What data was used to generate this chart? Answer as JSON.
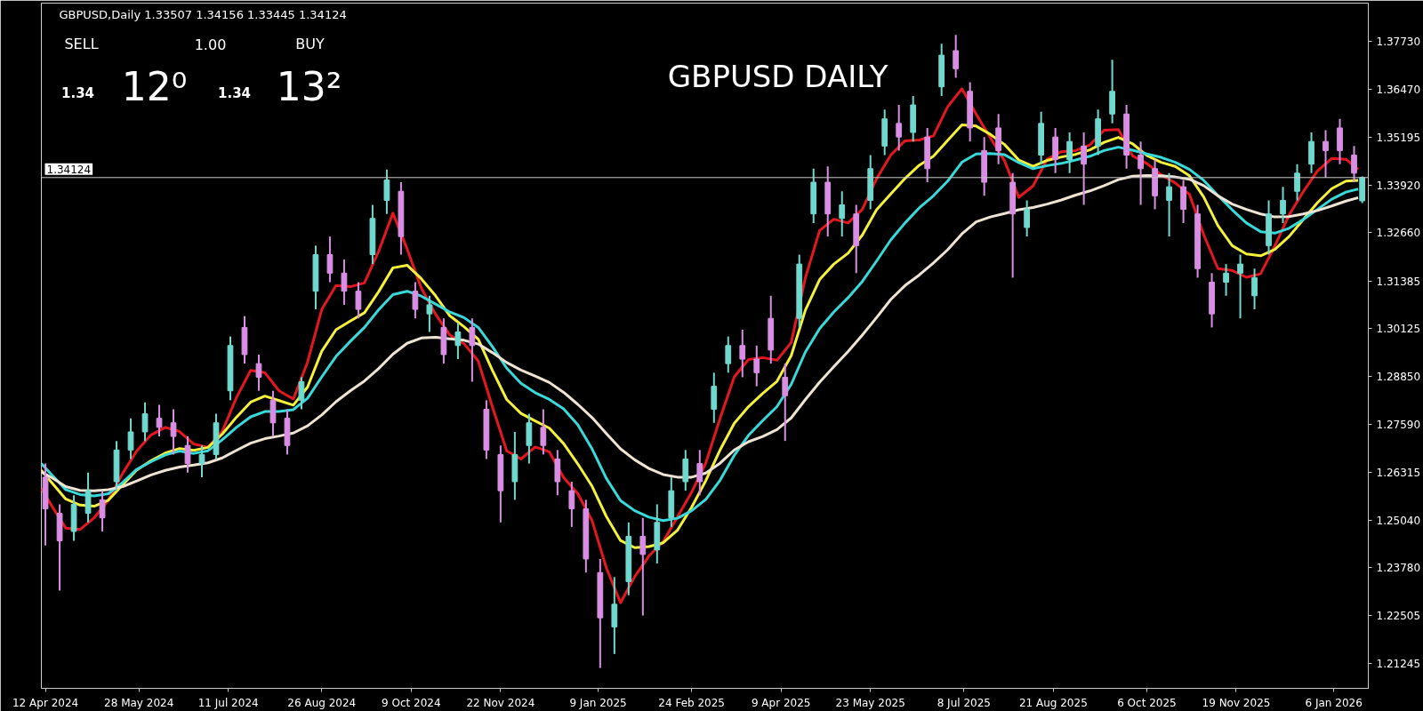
{
  "chart_data": {
    "type": "candlestick",
    "title": "GBPUSD DAILY",
    "subtitle": "GBPUSD,Daily 1.33507 1.34156 1.33445 1.34124",
    "annotations": [
      "SELL",
      "1.00",
      "BUY",
      "1.34",
      "12⁰",
      "1.34",
      "13²"
    ],
    "x": [
      "2024-04-12",
      "2024-04-19",
      "2024-04-26",
      "2024-05-03",
      "2024-05-10",
      "2024-05-17",
      "2024-05-24",
      "2024-05-31",
      "2024-06-07",
      "2024-06-14",
      "2024-06-21",
      "2024-06-28",
      "2024-07-05",
      "2024-07-12",
      "2024-07-19",
      "2024-07-26",
      "2024-08-02",
      "2024-08-09",
      "2024-08-16",
      "2024-08-23",
      "2024-08-30",
      "2024-09-06",
      "2024-09-13",
      "2024-09-20",
      "2024-09-27",
      "2024-10-04",
      "2024-10-11",
      "2024-10-18",
      "2024-10-25",
      "2024-11-01",
      "2024-11-08",
      "2024-11-15",
      "2024-11-22",
      "2024-11-29",
      "2024-12-06",
      "2024-12-13",
      "2024-12-20",
      "2024-12-27",
      "2025-01-03",
      "2025-01-10",
      "2025-01-17",
      "2025-01-24",
      "2025-01-31",
      "2025-02-07",
      "2025-02-14",
      "2025-02-21",
      "2025-02-28",
      "2025-03-07",
      "2025-03-14",
      "2025-03-21",
      "2025-03-28",
      "2025-04-04",
      "2025-04-11",
      "2025-04-18",
      "2025-04-25",
      "2025-05-02",
      "2025-05-09",
      "2025-05-16",
      "2025-05-23",
      "2025-05-30",
      "2025-06-06",
      "2025-06-13",
      "2025-06-20",
      "2025-06-27",
      "2025-07-04",
      "2025-07-11",
      "2025-07-18",
      "2025-07-25",
      "2025-08-01",
      "2025-08-08",
      "2025-08-15",
      "2025-08-22",
      "2025-08-29",
      "2025-09-05",
      "2025-09-12",
      "2025-09-19",
      "2025-09-26",
      "2025-10-03",
      "2025-10-10",
      "2025-10-17",
      "2025-10-24",
      "2025-10-31",
      "2025-11-07",
      "2025-11-14",
      "2025-11-21",
      "2025-11-28",
      "2025-12-05",
      "2025-12-12",
      "2025-12-19",
      "2025-12-26",
      "2026-01-02",
      "2026-01-09",
      "2026-01-16",
      "2026-01-20"
    ],
    "ohlc": [
      [
        1.2618,
        1.2654,
        1.2437,
        1.2534
      ],
      [
        1.2522,
        1.2546,
        1.2317,
        1.2449
      ],
      [
        1.2474,
        1.257,
        1.2449,
        1.2546
      ],
      [
        1.2522,
        1.263,
        1.2498,
        1.2582
      ],
      [
        1.2558,
        1.2582,
        1.2474,
        1.251
      ],
      [
        1.2606,
        1.2714,
        1.2582,
        1.269
      ],
      [
        1.269,
        1.2774,
        1.2666,
        1.2738
      ],
      [
        1.2738,
        1.2816,
        1.2714,
        1.2786
      ],
      [
        1.2774,
        1.281,
        1.2726,
        1.275
      ],
      [
        1.2762,
        1.2798,
        1.2678,
        1.2726
      ],
      [
        1.2702,
        1.2726,
        1.263,
        1.2654
      ],
      [
        1.2654,
        1.2702,
        1.2618,
        1.2678
      ],
      [
        1.2678,
        1.2786,
        1.2666,
        1.2762
      ],
      [
        1.2847,
        1.2991,
        1.2822,
        1.2967
      ],
      [
        1.3015,
        1.3045,
        1.2919,
        1.2943
      ],
      [
        1.2919,
        1.2943,
        1.2847,
        1.2883
      ],
      [
        1.2822,
        1.2847,
        1.2726,
        1.2762
      ],
      [
        1.2774,
        1.2798,
        1.2678,
        1.2702
      ],
      [
        1.2822,
        1.2883,
        1.2798,
        1.2871
      ],
      [
        1.3111,
        1.3232,
        1.3063,
        1.3208
      ],
      [
        1.3208,
        1.3256,
        1.3135,
        1.3159
      ],
      [
        1.3159,
        1.3195,
        1.3075,
        1.3111
      ],
      [
        1.3111,
        1.3135,
        1.3039,
        1.3063
      ],
      [
        1.3208,
        1.334,
        1.3183,
        1.3304
      ],
      [
        1.3352,
        1.3434,
        1.3316,
        1.3406
      ],
      [
        1.3376,
        1.34,
        1.3208,
        1.3256
      ],
      [
        1.3111,
        1.3135,
        1.3039,
        1.3063
      ],
      [
        1.3051,
        1.3099,
        1.3003,
        1.3075
      ],
      [
        1.3015,
        1.3039,
        1.2919,
        1.2943
      ],
      [
        1.2967,
        1.3027,
        1.2931,
        1.3003
      ],
      [
        1.3015,
        1.3039,
        1.2871,
        1.2967
      ],
      [
        1.2798,
        1.2822,
        1.2666,
        1.269
      ],
      [
        1.2678,
        1.2702,
        1.2498,
        1.2582
      ],
      [
        1.2606,
        1.2738,
        1.2558,
        1.2678
      ],
      [
        1.2702,
        1.2786,
        1.2654,
        1.2762
      ],
      [
        1.275,
        1.2798,
        1.2678,
        1.2702
      ],
      [
        1.2666,
        1.269,
        1.257,
        1.2606
      ],
      [
        1.2582,
        1.2606,
        1.2486,
        1.2534
      ],
      [
        1.2534,
        1.2558,
        1.2365,
        1.2401
      ],
      [
        1.2365,
        1.2401,
        1.2112,
        1.2245
      ],
      [
        1.2221,
        1.2353,
        1.2149,
        1.2281
      ],
      [
        1.2341,
        1.2498,
        1.2305,
        1.2461
      ],
      [
        1.2461,
        1.251,
        1.2251,
        1.2413
      ],
      [
        1.2425,
        1.2546,
        1.2389,
        1.2498
      ],
      [
        1.251,
        1.2618,
        1.2486,
        1.2582
      ],
      [
        1.2606,
        1.269,
        1.2582,
        1.2666
      ],
      [
        1.2654,
        1.269,
        1.257,
        1.2606
      ],
      [
        1.2798,
        1.2895,
        1.2762,
        1.2859
      ],
      [
        1.2919,
        1.2991,
        1.2895,
        1.2967
      ],
      [
        1.2967,
        1.3009,
        1.2883,
        1.2931
      ],
      [
        1.2931,
        1.2967,
        1.2859,
        1.2895
      ],
      [
        1.3039,
        1.3099,
        1.2919,
        1.2955
      ],
      [
        1.2883,
        1.2919,
        1.2714,
        1.2834
      ],
      [
        1.3039,
        1.3208,
        1.3015,
        1.3183
      ],
      [
        1.3316,
        1.3436,
        1.3292,
        1.34
      ],
      [
        1.34,
        1.3442,
        1.3256,
        1.3316
      ],
      [
        1.3304,
        1.3376,
        1.3256,
        1.334
      ],
      [
        1.3316,
        1.334,
        1.3159,
        1.3232
      ],
      [
        1.3352,
        1.3472,
        1.3328,
        1.3436
      ],
      [
        1.3496,
        1.3593,
        1.3472,
        1.3568
      ],
      [
        1.3556,
        1.3605,
        1.3484,
        1.352
      ],
      [
        1.3532,
        1.3629,
        1.3508,
        1.3605
      ],
      [
        1.352,
        1.3544,
        1.34,
        1.3436
      ],
      [
        1.3653,
        1.3767,
        1.3629,
        1.3737
      ],
      [
        1.3749,
        1.3791,
        1.3677,
        1.3701
      ],
      [
        1.3641,
        1.3665,
        1.3508,
        1.3544
      ],
      [
        1.3484,
        1.352,
        1.3364,
        1.34
      ],
      [
        1.3544,
        1.3581,
        1.3448,
        1.3484
      ],
      [
        1.34,
        1.3424,
        1.3147,
        1.3316
      ],
      [
        1.328,
        1.3352,
        1.3256,
        1.3328
      ],
      [
        1.3472,
        1.3587,
        1.3448,
        1.3556
      ],
      [
        1.352,
        1.3544,
        1.3424,
        1.346
      ],
      [
        1.346,
        1.3532,
        1.3424,
        1.3508
      ],
      [
        1.3496,
        1.3532,
        1.334,
        1.3448
      ],
      [
        1.3496,
        1.3593,
        1.3472,
        1.3568
      ],
      [
        1.3581,
        1.3725,
        1.3556,
        1.3641
      ],
      [
        1.3581,
        1.3605,
        1.3436,
        1.3472
      ],
      [
        1.3472,
        1.3508,
        1.334,
        1.3436
      ],
      [
        1.3436,
        1.346,
        1.3328,
        1.3364
      ],
      [
        1.3352,
        1.3424,
        1.3256,
        1.3388
      ],
      [
        1.3388,
        1.3406,
        1.3292,
        1.3328
      ],
      [
        1.3316,
        1.334,
        1.3147,
        1.3171
      ],
      [
        1.3135,
        1.3159,
        1.3015,
        1.3051
      ],
      [
        1.3135,
        1.3183,
        1.3099,
        1.3159
      ],
      [
        1.3159,
        1.3208,
        1.3039,
        1.3183
      ],
      [
        1.3099,
        1.3171,
        1.3063,
        1.3147
      ],
      [
        1.3232,
        1.3352,
        1.3208,
        1.3316
      ],
      [
        1.3316,
        1.3388,
        1.3292,
        1.3352
      ],
      [
        1.3376,
        1.3448,
        1.3352,
        1.3424
      ],
      [
        1.3448,
        1.3532,
        1.3424,
        1.3508
      ],
      [
        1.3508,
        1.3538,
        1.3412,
        1.3484
      ],
      [
        1.3544,
        1.3568,
        1.3448,
        1.3484
      ],
      [
        1.3472,
        1.3496,
        1.34,
        1.3424
      ],
      [
        1.33507,
        1.34156,
        1.33445,
        1.34124
      ]
    ],
    "colors": [
      "#d88fe3",
      "#d88fe3",
      "#6fd8cf",
      "#6fd8cf",
      "#d88fe3",
      "#6fd8cf",
      "#6fd8cf",
      "#6fd8cf",
      "#d88fe3",
      "#d88fe3",
      "#d88fe3",
      "#6fd8cf",
      "#6fd8cf",
      "#6fd8cf",
      "#d88fe3",
      "#d88fe3",
      "#d88fe3",
      "#d88fe3",
      "#6fd8cf",
      "#6fd8cf",
      "#d88fe3",
      "#d88fe3",
      "#d88fe3",
      "#6fd8cf",
      "#6fd8cf",
      "#d88fe3",
      "#d88fe3",
      "#6fd8cf",
      "#d88fe3",
      "#6fd8cf",
      "#d88fe3",
      "#d88fe3",
      "#d88fe3",
      "#6fd8cf",
      "#6fd8cf",
      "#d88fe3",
      "#d88fe3",
      "#d88fe3",
      "#d88fe3",
      "#d88fe3",
      "#6fd8cf",
      "#6fd8cf",
      "#d88fe3",
      "#6fd8cf",
      "#6fd8cf",
      "#6fd8cf",
      "#d88fe3",
      "#6fd8cf",
      "#6fd8cf",
      "#d88fe3",
      "#d88fe3",
      "#d88fe3",
      "#d88fe3",
      "#6fd8cf",
      "#6fd8cf",
      "#d88fe3",
      "#6fd8cf",
      "#d88fe3",
      "#6fd8cf",
      "#6fd8cf",
      "#d88fe3",
      "#6fd8cf",
      "#d88fe3",
      "#6fd8cf",
      "#d88fe3",
      "#d88fe3",
      "#d88fe3",
      "#d88fe3",
      "#d88fe3",
      "#6fd8cf",
      "#6fd8cf",
      "#d88fe3",
      "#6fd8cf",
      "#d88fe3",
      "#6fd8cf",
      "#6fd8cf",
      "#d88fe3",
      "#d88fe3",
      "#d88fe3",
      "#6fd8cf",
      "#d88fe3",
      "#d88fe3",
      "#d88fe3",
      "#6fd8cf",
      "#6fd8cf",
      "#6fd8cf",
      "#6fd8cf",
      "#6fd8cf",
      "#6fd8cf",
      "#6fd8cf",
      "#d88fe3",
      "#d88fe3",
      "#d88fe3",
      "#6fd8cf"
    ],
    "series": [
      {
        "type": "line",
        "color": "#e3171f",
        "x": [
          "2024-04-10",
          "2024-04-15",
          "2024-04-22",
          "2024-04-29",
          "2024-05-06",
          "2024-05-13",
          "2024-05-20",
          "2024-05-27",
          "2024-06-03",
          "2024-06-10",
          "2024-06-17",
          "2024-06-24",
          "2024-07-01",
          "2024-07-08",
          "2024-07-15",
          "2024-07-22",
          "2024-07-29",
          "2024-08-05",
          "2024-08-12",
          "2024-08-19",
          "2024-08-26",
          "2024-09-02",
          "2024-09-09",
          "2024-09-16",
          "2024-09-23",
          "2024-09-30",
          "2024-10-07",
          "2024-10-14",
          "2024-10-21",
          "2024-10-28",
          "2024-11-04",
          "2024-11-11",
          "2024-11-18",
          "2024-11-25",
          "2024-12-02",
          "2024-12-09",
          "2024-12-16",
          "2024-12-23",
          "2024-12-30",
          "2025-01-06",
          "2025-01-13",
          "2025-01-20",
          "2025-01-27",
          "2025-02-03",
          "2025-02-10",
          "2025-02-17",
          "2025-02-24",
          "2025-03-03",
          "2025-03-10",
          "2025-03-17",
          "2025-03-24",
          "2025-03-31",
          "2025-04-07",
          "2025-04-14",
          "2025-04-21",
          "2025-04-28",
          "2025-05-05",
          "2025-05-12",
          "2025-05-19",
          "2025-05-26",
          "2025-06-02",
          "2025-06-09",
          "2025-06-16",
          "2025-06-23",
          "2025-06-30",
          "2025-07-07",
          "2025-07-14",
          "2025-07-21",
          "2025-07-28",
          "2025-08-04",
          "2025-08-11",
          "2025-08-18",
          "2025-08-25",
          "2025-09-01",
          "2025-09-08",
          "2025-09-15",
          "2025-09-22",
          "2025-09-29",
          "2025-10-06",
          "2025-10-13",
          "2025-10-20",
          "2025-10-27",
          "2025-11-03",
          "2025-11-10",
          "2025-11-17",
          "2025-11-24",
          "2025-12-01",
          "2025-12-08",
          "2025-12-15",
          "2025-12-22",
          "2025-12-29",
          "2026-01-05",
          "2026-01-12",
          "2026-01-18"
        ],
        "values": [
          1.2588,
          1.2543,
          1.2483,
          1.2479,
          1.251,
          1.2557,
          1.2628,
          1.2688,
          1.273,
          1.275,
          1.2739,
          1.2706,
          1.2697,
          1.2739,
          1.2829,
          1.2901,
          1.2895,
          1.2847,
          1.2825,
          1.2923,
          1.3063,
          1.3126,
          1.3123,
          1.3133,
          1.3217,
          1.3318,
          1.3223,
          1.3119,
          1.305,
          1.2995,
          1.2972,
          1.2926,
          1.2804,
          1.2688,
          1.2666,
          1.2698,
          1.2685,
          1.2617,
          1.2574,
          1.2503,
          1.2378,
          1.2285,
          1.2354,
          1.2409,
          1.2447,
          1.2512,
          1.2578,
          1.2656,
          1.2774,
          1.2884,
          1.293,
          1.2935,
          1.2928,
          1.2975,
          1.3147,
          1.3272,
          1.3302,
          1.3292,
          1.3328,
          1.3409,
          1.3472,
          1.351,
          1.3512,
          1.3523,
          1.36,
          1.3648,
          1.3581,
          1.3518,
          1.3457,
          1.336,
          1.339,
          1.3461,
          1.3481,
          1.3484,
          1.3499,
          1.3538,
          1.354,
          1.347,
          1.345,
          1.342,
          1.3398,
          1.3368,
          1.3261,
          1.3171,
          1.3166,
          1.3148,
          1.3157,
          1.3231,
          1.3313,
          1.3375,
          1.343,
          1.3463,
          1.3461,
          1.3434
        ]
      },
      {
        "type": "line",
        "color": "#f5f03a",
        "x": [
          "2024-04-10",
          "2024-04-15",
          "2024-04-22",
          "2024-04-29",
          "2024-05-06",
          "2024-05-13",
          "2024-05-20",
          "2024-05-27",
          "2024-06-03",
          "2024-06-10",
          "2024-06-17",
          "2024-06-24",
          "2024-07-01",
          "2024-07-08",
          "2024-07-15",
          "2024-07-22",
          "2024-07-29",
          "2024-08-05",
          "2024-08-12",
          "2024-08-19",
          "2024-08-26",
          "2024-09-02",
          "2024-09-09",
          "2024-09-16",
          "2024-09-23",
          "2024-09-30",
          "2024-10-07",
          "2024-10-14",
          "2024-10-21",
          "2024-10-28",
          "2024-11-04",
          "2024-11-11",
          "2024-11-18",
          "2024-11-25",
          "2024-12-02",
          "2024-12-09",
          "2024-12-16",
          "2024-12-23",
          "2024-12-30",
          "2025-01-06",
          "2025-01-13",
          "2025-01-20",
          "2025-01-27",
          "2025-02-03",
          "2025-02-10",
          "2025-02-17",
          "2025-02-24",
          "2025-03-03",
          "2025-03-10",
          "2025-03-17",
          "2025-03-24",
          "2025-03-31",
          "2025-04-07",
          "2025-04-14",
          "2025-04-21",
          "2025-04-28",
          "2025-05-05",
          "2025-05-12",
          "2025-05-19",
          "2025-05-26",
          "2025-06-02",
          "2025-06-09",
          "2025-06-16",
          "2025-06-23",
          "2025-06-30",
          "2025-07-07",
          "2025-07-14",
          "2025-07-21",
          "2025-07-28",
          "2025-08-04",
          "2025-08-11",
          "2025-08-18",
          "2025-08-25",
          "2025-09-01",
          "2025-09-08",
          "2025-09-15",
          "2025-09-22",
          "2025-09-29",
          "2025-10-06",
          "2025-10-13",
          "2025-10-20",
          "2025-10-27",
          "2025-11-03",
          "2025-11-10",
          "2025-11-17",
          "2025-11-24",
          "2025-12-01",
          "2025-12-08",
          "2025-12-15",
          "2025-12-22",
          "2025-12-29",
          "2026-01-05",
          "2026-01-12",
          "2026-01-18"
        ],
        "values": [
          1.2636,
          1.2604,
          1.256,
          1.2544,
          1.2541,
          1.2557,
          1.2598,
          1.2637,
          1.2662,
          1.2682,
          1.2694,
          1.2689,
          1.2697,
          1.2732,
          1.2777,
          1.2817,
          1.2833,
          1.2821,
          1.2809,
          1.2857,
          1.2952,
          1.3009,
          1.3032,
          1.3054,
          1.311,
          1.3173,
          1.318,
          1.3144,
          1.3099,
          1.3046,
          1.3017,
          1.2984,
          1.2901,
          1.2824,
          1.2787,
          1.2767,
          1.2748,
          1.2707,
          1.2653,
          1.2594,
          1.2514,
          1.245,
          1.2431,
          1.2434,
          1.2444,
          1.2477,
          1.2538,
          1.2609,
          1.269,
          1.2761,
          1.2805,
          1.284,
          1.2872,
          1.294,
          1.3061,
          1.3142,
          1.3183,
          1.3212,
          1.326,
          1.3327,
          1.3369,
          1.341,
          1.3445,
          1.3469,
          1.3511,
          1.3552,
          1.3549,
          1.3527,
          1.35,
          1.3459,
          1.3442,
          1.3458,
          1.3467,
          1.3474,
          1.3486,
          1.3506,
          1.3519,
          1.3502,
          1.3471,
          1.3453,
          1.3442,
          1.3417,
          1.3361,
          1.3285,
          1.3232,
          1.321,
          1.3205,
          1.3222,
          1.3256,
          1.3301,
          1.3346,
          1.3383,
          1.3403,
          1.3405
        ]
      },
      {
        "type": "line",
        "color": "#38d9d9",
        "x": [
          "2024-04-10",
          "2024-04-15",
          "2024-04-22",
          "2024-04-29",
          "2024-05-06",
          "2024-05-13",
          "2024-05-20",
          "2024-05-27",
          "2024-06-03",
          "2024-06-10",
          "2024-06-17",
          "2024-06-24",
          "2024-07-01",
          "2024-07-08",
          "2024-07-15",
          "2024-07-22",
          "2024-07-29",
          "2024-08-05",
          "2024-08-12",
          "2024-08-19",
          "2024-08-26",
          "2024-09-02",
          "2024-09-09",
          "2024-09-16",
          "2024-09-23",
          "2024-09-30",
          "2024-10-07",
          "2024-10-14",
          "2024-10-21",
          "2024-10-28",
          "2024-11-04",
          "2024-11-11",
          "2024-11-18",
          "2024-11-25",
          "2024-12-02",
          "2024-12-09",
          "2024-12-16",
          "2024-12-23",
          "2024-12-30",
          "2025-01-06",
          "2025-01-13",
          "2025-01-20",
          "2025-01-27",
          "2025-02-03",
          "2025-02-10",
          "2025-02-17",
          "2025-02-24",
          "2025-03-03",
          "2025-03-10",
          "2025-03-17",
          "2025-03-24",
          "2025-03-31",
          "2025-04-07",
          "2025-04-14",
          "2025-04-21",
          "2025-04-28",
          "2025-05-05",
          "2025-05-12",
          "2025-05-19",
          "2025-05-26",
          "2025-06-02",
          "2025-06-09",
          "2025-06-16",
          "2025-06-23",
          "2025-06-30",
          "2025-07-07",
          "2025-07-14",
          "2025-07-21",
          "2025-07-28",
          "2025-08-04",
          "2025-08-11",
          "2025-08-18",
          "2025-08-25",
          "2025-09-01",
          "2025-09-08",
          "2025-09-15",
          "2025-09-22",
          "2025-09-29",
          "2025-10-06",
          "2025-10-13",
          "2025-10-20",
          "2025-10-27",
          "2025-11-03",
          "2025-11-10",
          "2025-11-17",
          "2025-11-24",
          "2025-12-01",
          "2025-12-08",
          "2025-12-15",
          "2025-12-22",
          "2025-12-29",
          "2026-01-05",
          "2026-01-12",
          "2026-01-18"
        ],
        "values": [
          1.2654,
          1.2625,
          1.2585,
          1.2572,
          1.2568,
          1.2574,
          1.2604,
          1.2639,
          1.2659,
          1.2677,
          1.2687,
          1.2681,
          1.2688,
          1.2717,
          1.275,
          1.2778,
          1.2792,
          1.2792,
          1.2797,
          1.2827,
          1.2884,
          1.2938,
          1.2978,
          1.3015,
          1.3062,
          1.3102,
          1.3111,
          1.3098,
          1.3077,
          1.3056,
          1.3041,
          1.3015,
          1.2964,
          1.2907,
          1.2867,
          1.2842,
          1.2824,
          1.2799,
          1.2757,
          1.2693,
          1.2615,
          1.2556,
          1.2529,
          1.2512,
          1.2503,
          1.2509,
          1.2529,
          1.2559,
          1.261,
          1.2676,
          1.2729,
          1.2768,
          1.2805,
          1.2864,
          1.295,
          1.3012,
          1.3056,
          1.3094,
          1.3137,
          1.3191,
          1.3247,
          1.3292,
          1.3332,
          1.3364,
          1.3403,
          1.3453,
          1.3475,
          1.3476,
          1.3473,
          1.3452,
          1.3436,
          1.3444,
          1.345,
          1.3459,
          1.3469,
          1.3484,
          1.3493,
          1.3485,
          1.3475,
          1.3466,
          1.3453,
          1.3434,
          1.3405,
          1.3365,
          1.3327,
          1.3292,
          1.3269,
          1.3265,
          1.3278,
          1.3301,
          1.3328,
          1.3355,
          1.3374,
          1.3382
        ]
      },
      {
        "type": "line",
        "color": "#efe3d3",
        "x": [
          "2024-04-10",
          "2024-04-15",
          "2024-04-22",
          "2024-04-29",
          "2024-05-06",
          "2024-05-13",
          "2024-05-20",
          "2024-05-27",
          "2024-06-03",
          "2024-06-10",
          "2024-06-17",
          "2024-06-24",
          "2024-07-01",
          "2024-07-08",
          "2024-07-15",
          "2024-07-22",
          "2024-07-29",
          "2024-08-05",
          "2024-08-12",
          "2024-08-19",
          "2024-08-26",
          "2024-09-02",
          "2024-09-09",
          "2024-09-16",
          "2024-09-23",
          "2024-09-30",
          "2024-10-07",
          "2024-10-14",
          "2024-10-21",
          "2024-10-28",
          "2024-11-04",
          "2024-11-11",
          "2024-11-18",
          "2024-11-25",
          "2024-12-02",
          "2024-12-09",
          "2024-12-16",
          "2024-12-23",
          "2024-12-30",
          "2025-01-06",
          "2025-01-13",
          "2025-01-20",
          "2025-01-27",
          "2025-02-03",
          "2025-02-10",
          "2025-02-17",
          "2025-02-24",
          "2025-03-03",
          "2025-03-10",
          "2025-03-17",
          "2025-03-24",
          "2025-03-31",
          "2025-04-07",
          "2025-04-14",
          "2025-04-21",
          "2025-04-28",
          "2025-05-05",
          "2025-05-12",
          "2025-05-19",
          "2025-05-26",
          "2025-06-02",
          "2025-06-09",
          "2025-06-16",
          "2025-06-23",
          "2025-06-30",
          "2025-07-07",
          "2025-07-14",
          "2025-07-21",
          "2025-07-28",
          "2025-08-04",
          "2025-08-11",
          "2025-08-18",
          "2025-08-25",
          "2025-09-01",
          "2025-09-08",
          "2025-09-15",
          "2025-09-22",
          "2025-09-29",
          "2025-10-06",
          "2025-10-13",
          "2025-10-20",
          "2025-10-27",
          "2025-11-03",
          "2025-11-10",
          "2025-11-17",
          "2025-11-24",
          "2025-12-01",
          "2025-12-08",
          "2025-12-15",
          "2025-12-22",
          "2025-12-29",
          "2026-01-05",
          "2026-01-12",
          "2026-01-18"
        ],
        "values": [
          1.2632,
          1.2617,
          1.2593,
          1.2583,
          1.2582,
          1.2585,
          1.2593,
          1.2608,
          1.2624,
          1.2636,
          1.2645,
          1.265,
          1.2656,
          1.2669,
          1.2689,
          1.2708,
          1.272,
          1.2727,
          1.2735,
          1.2754,
          1.2783,
          1.2818,
          1.2847,
          1.2873,
          1.2906,
          1.2944,
          1.2973,
          1.2987,
          1.2989,
          1.2985,
          1.2981,
          1.2971,
          1.2948,
          1.2922,
          1.2902,
          1.2886,
          1.2869,
          1.2843,
          1.2811,
          1.2776,
          1.2734,
          1.2693,
          1.2664,
          1.2641,
          1.2625,
          1.2618,
          1.2618,
          1.2629,
          1.2655,
          1.269,
          1.2712,
          1.2726,
          1.2744,
          1.2775,
          1.2824,
          1.287,
          1.2911,
          1.2951,
          1.2995,
          1.3041,
          1.3089,
          1.3126,
          1.3154,
          1.3186,
          1.3221,
          1.3263,
          1.3295,
          1.3308,
          1.3317,
          1.3327,
          1.3333,
          1.3342,
          1.3353,
          1.3366,
          1.3377,
          1.3391,
          1.3407,
          1.3416,
          1.3418,
          1.3417,
          1.3414,
          1.3408,
          1.3391,
          1.3364,
          1.3342,
          1.3328,
          1.3316,
          1.3308,
          1.3309,
          1.3316,
          1.3325,
          1.3337,
          1.335,
          1.3359
        ]
      }
    ],
    "ref_lines": [
      {
        "axis": "y",
        "value": 1.34124,
        "label": "1.34124",
        "color": "#c8c8c8"
      }
    ],
    "xlim": [
      "2024-04-10",
      "2026-01-23"
    ],
    "xticks": [
      {
        "value": "2024-04-12",
        "label": "12 Apr 2024"
      },
      {
        "value": "2024-05-28",
        "label": "28 May 2024"
      },
      {
        "value": "2024-07-11",
        "label": "11 Jul 2024"
      },
      {
        "value": "2024-08-26",
        "label": "26 Aug 2024"
      },
      {
        "value": "2024-10-09",
        "label": "9 Oct 2024"
      },
      {
        "value": "2024-11-22",
        "label": "22 Nov 2024"
      },
      {
        "value": "2025-01-09",
        "label": "9 Jan 2025"
      },
      {
        "value": "2025-02-24",
        "label": "24 Feb 2025"
      },
      {
        "value": "2025-04-09",
        "label": "9 Apr 2025"
      },
      {
        "value": "2025-05-23",
        "label": "23 May 2025"
      },
      {
        "value": "2025-07-08",
        "label": "8 Jul 2025"
      },
      {
        "value": "2025-08-21",
        "label": "21 Aug 2025"
      },
      {
        "value": "2025-10-06",
        "label": "6 Oct 2025"
      },
      {
        "value": "2025-11-19",
        "label": "19 Nov 2025"
      },
      {
        "value": "2026-01-06",
        "label": "6 Jan 2026"
      }
    ],
    "ylim": [
      1.2058,
      1.3875
    ],
    "yticks": [
      {
        "value": 1.3773,
        "label": "1.37730"
      },
      {
        "value": 1.3647,
        "label": "1.36470"
      },
      1.35195,
      {
        "value": 1.3392,
        "label": "1.33920"
      },
      {
        "value": 1.3266,
        "label": "1.32660"
      },
      1.31385,
      1.30125,
      {
        "value": 1.2885,
        "label": "1.28850"
      },
      {
        "value": 1.2759,
        "label": "1.27590"
      },
      1.26315,
      {
        "value": 1.2504,
        "label": "1.25040"
      },
      {
        "value": 1.2378,
        "label": "1.23780"
      },
      1.22505,
      1.21245
    ]
  }
}
